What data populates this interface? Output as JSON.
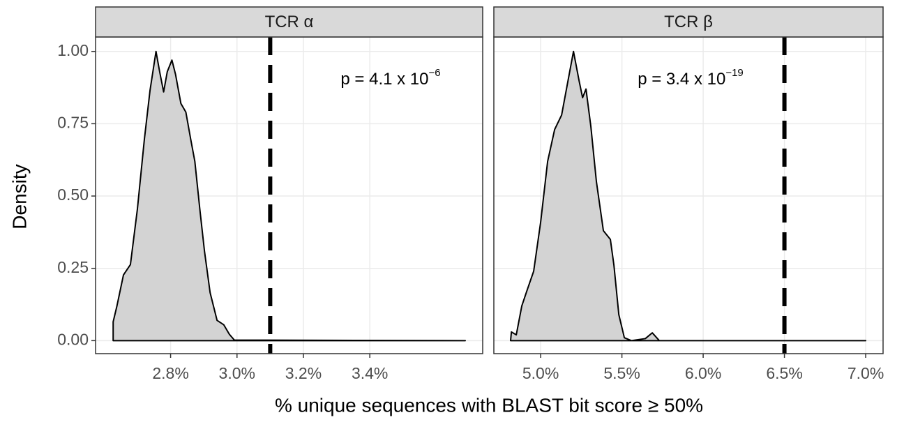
{
  "chart_data": [
    {
      "type": "area",
      "strip": "TCR α",
      "annotation": {
        "text": "p = 4.1 x 10",
        "sup": "−6"
      },
      "x": [
        2.627,
        2.638,
        2.658,
        2.679,
        2.7,
        2.721,
        2.738,
        2.756,
        2.767,
        2.779,
        2.79,
        2.804,
        2.815,
        2.831,
        2.846,
        2.86,
        2.873,
        2.888,
        2.902,
        2.919,
        2.94,
        2.96,
        2.977,
        2.992,
        3.6875
      ],
      "values": [
        0.065,
        0.118,
        0.227,
        0.263,
        0.455,
        0.696,
        0.865,
        1.0,
        0.93,
        0.86,
        0.93,
        0.97,
        0.92,
        0.82,
        0.79,
        0.7,
        0.62,
        0.455,
        0.31,
        0.166,
        0.07,
        0.055,
        0.022,
        0.002,
        0
      ],
      "color": "#d3d3d3",
      "vline": 3.1,
      "xlim": [
        2.574,
        3.74
      ],
      "ylim": [
        -0.045,
        1.05
      ],
      "xticks": [
        {
          "value": 2.8,
          "label": "2.8%"
        },
        {
          "value": 3.0,
          "label": "3.0%"
        },
        {
          "value": 3.2,
          "label": "3.2%"
        },
        {
          "value": 3.4,
          "label": "3.4%"
        }
      ],
      "yticks": [
        {
          "value": 0,
          "label": "0.00"
        },
        {
          "value": 0.25,
          "label": "0.25"
        },
        {
          "value": 0.5,
          "label": "0.50"
        },
        {
          "value": 0.75,
          "label": "0.75"
        },
        {
          "value": 1,
          "label": "1.00"
        }
      ],
      "grid": true
    },
    {
      "type": "area",
      "strip": "TCR β",
      "annotation": {
        "text": "p = 3.4 x 10",
        "sup": "−19"
      },
      "x": [
        4.815,
        4.82,
        4.85,
        4.884,
        4.914,
        4.957,
        5.0,
        5.043,
        5.086,
        5.129,
        5.172,
        5.202,
        5.236,
        5.258,
        5.279,
        5.309,
        5.343,
        5.386,
        5.429,
        5.451,
        5.481,
        5.515,
        5.558,
        5.644,
        5.687,
        5.73,
        7.0
      ],
      "values": [
        0,
        0.03,
        0.02,
        0.12,
        0.17,
        0.24,
        0.41,
        0.62,
        0.73,
        0.78,
        0.91,
        1.0,
        0.9,
        0.84,
        0.87,
        0.74,
        0.55,
        0.38,
        0.35,
        0.26,
        0.09,
        0.01,
        0,
        0.007,
        0.027,
        0,
        0
      ],
      "color": "#d3d3d3",
      "vline": 6.5,
      "xlim": [
        4.712,
        7.107
      ],
      "ylim": [
        -0.045,
        1.05
      ],
      "xticks": [
        {
          "value": 5.0,
          "label": "5.0%"
        },
        {
          "value": 5.5,
          "label": "5.5%"
        },
        {
          "value": 6.0,
          "label": "6.0%"
        },
        {
          "value": 6.5,
          "label": "6.5%"
        },
        {
          "value": 7.0,
          "label": "7.0%"
        }
      ],
      "yticks": [
        0,
        0.25,
        0.5,
        0.75,
        1
      ],
      "grid": true
    }
  ],
  "xlabel": "% unique sequences with BLAST bit score ≥ 50%",
  "ylabel": "Density"
}
